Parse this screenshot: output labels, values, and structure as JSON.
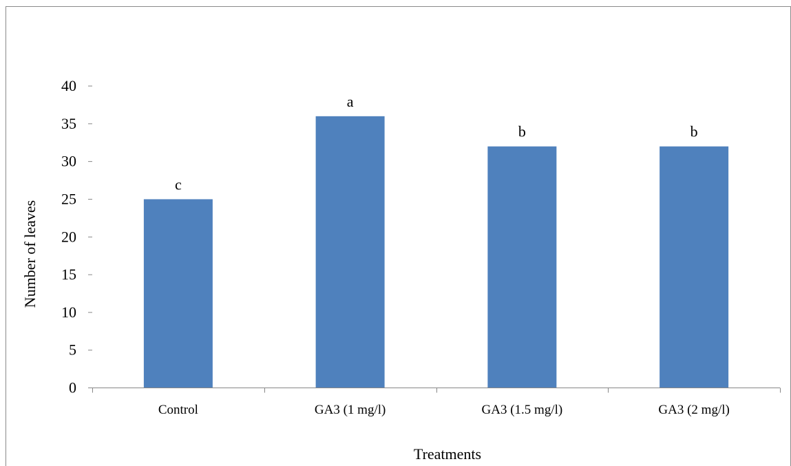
{
  "chart_data": {
    "type": "bar",
    "title": "",
    "xlabel": "Treatments",
    "ylabel": "Number of leaves",
    "categories": [
      "Control",
      "GA3 (1 mg/l)",
      "GA3 (1.5 mg/l)",
      "GA3 (2 mg/l)"
    ],
    "values": [
      25,
      36,
      32,
      32
    ],
    "bar_labels": [
      "c",
      "a",
      "b",
      "b"
    ],
    "ylim": [
      0,
      40
    ],
    "yticks": [
      0,
      5,
      10,
      15,
      20,
      25,
      30,
      35,
      40
    ],
    "grid": false,
    "legend": "none",
    "bar_color": "#4F81BD",
    "border_color": "#898989"
  }
}
